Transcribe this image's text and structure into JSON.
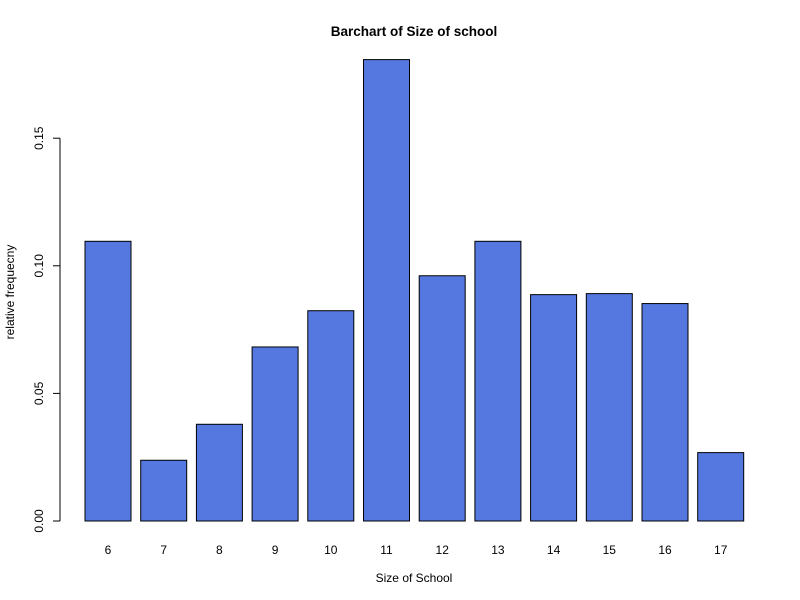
{
  "chart_data": {
    "type": "bar",
    "title": "Barchart of Size of school",
    "xlabel": "Size of School",
    "ylabel": "relative frequecny",
    "categories": [
      "6",
      "7",
      "8",
      "9",
      "10",
      "11",
      "12",
      "13",
      "14",
      "15",
      "16",
      "17"
    ],
    "values": [
      0.1096,
      0.0238,
      0.0379,
      0.0682,
      0.0824,
      0.1808,
      0.0961,
      0.1096,
      0.0887,
      0.0891,
      0.0852,
      0.0268
    ],
    "ylim": [
      0,
      0.18
    ],
    "yticks": [
      0.0,
      0.05,
      0.1,
      0.15
    ],
    "ytick_labels": [
      "0.00",
      "0.05",
      "0.10",
      "0.15"
    ],
    "grid": false,
    "legend": "none",
    "bar_color": "#5477e0",
    "bar_edge_color": "#000000"
  }
}
